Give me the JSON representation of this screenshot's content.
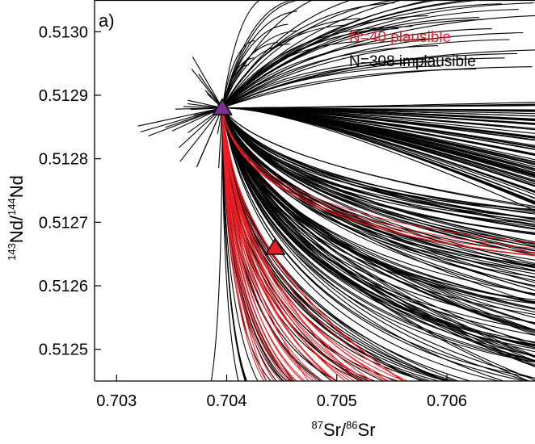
{
  "chart_data": {
    "type": "line",
    "panel_label": "a)",
    "xlabel": {
      "sup1": "87",
      "base1": "Sr/",
      "sup2": "86",
      "base2": "Sr"
    },
    "ylabel": {
      "sup1": "143",
      "base1": "Nd/",
      "sup2": "144",
      "base2": "Nd"
    },
    "xlim": [
      0.7028,
      0.7068
    ],
    "ylim": [
      0.51245,
      0.51305
    ],
    "xticks": [
      0.703,
      0.704,
      0.705,
      0.706
    ],
    "xtick_labels": [
      "0.703",
      "0.704",
      "0.705",
      "0.706"
    ],
    "yticks": [
      0.5125,
      0.5126,
      0.5127,
      0.5128,
      0.5129,
      0.513
    ],
    "ytick_labels": [
      "0.5125",
      "0.5126",
      "0.5127",
      "0.5128",
      "0.5129",
      "0.5130"
    ],
    "grid": false,
    "legend_placement": "top-right",
    "colors": {
      "plausible": "#ee1c24",
      "implausible": "#000000",
      "source_marker": "#7b2f8e",
      "target_marker": "#e31e24"
    },
    "source_point": {
      "x": 0.70396,
      "y": 0.51288,
      "marker": "triangle",
      "color": "#7b2f8e"
    },
    "target_point": {
      "x": 0.70444,
      "y": 0.51266,
      "marker": "triangle",
      "color": "#e31e24"
    },
    "series": [
      {
        "name": "N=40 plausible",
        "count": 40,
        "color": "#ee1c24"
      },
      {
        "name": "N=308 implausible",
        "count": 308,
        "color": "#000000"
      }
    ]
  }
}
